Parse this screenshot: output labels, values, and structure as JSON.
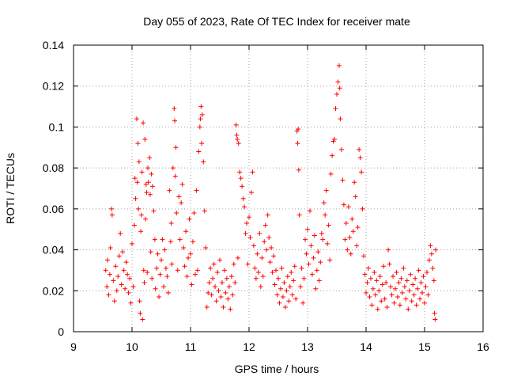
{
  "chart_data": {
    "type": "scatter",
    "title": "Day 055 of 2023, Rate Of TEC Index for receiver mate",
    "xlabel": "GPS time / hours",
    "ylabel": "ROTI / TECUs",
    "xlim": [
      9,
      16
    ],
    "ylim": [
      0,
      0.14
    ],
    "x_ticks": [
      9,
      10,
      11,
      12,
      13,
      14,
      15,
      16
    ],
    "y_ticks": [
      0,
      0.02,
      0.04,
      0.06,
      0.08,
      0.1,
      0.12,
      0.14
    ],
    "x_tick_labels": [
      "9",
      "10",
      "11",
      "12",
      "13",
      "14",
      "15",
      "16"
    ],
    "y_tick_labels": [
      "0",
      "0.02",
      "0.04",
      "0.06",
      "0.08",
      "0.1",
      "0.12",
      "0.14"
    ],
    "grid": true,
    "marker": "+",
    "color": "#ff0000",
    "series": [
      {
        "values": [
          [
            9.55,
            0.03
          ],
          [
            9.57,
            0.022
          ],
          [
            9.58,
            0.035
          ],
          [
            9.6,
            0.018
          ],
          [
            9.62,
            0.028
          ],
          [
            9.63,
            0.041
          ],
          [
            9.65,
            0.06
          ],
          [
            9.66,
            0.057
          ],
          [
            9.68,
            0.025
          ],
          [
            9.7,
            0.015
          ],
          [
            9.72,
            0.032
          ],
          [
            9.74,
            0.02
          ],
          [
            9.76,
            0.027
          ],
          [
            9.78,
            0.037
          ],
          [
            9.8,
            0.048
          ],
          [
            9.82,
            0.023
          ],
          [
            9.84,
            0.039
          ],
          [
            9.86,
            0.03
          ],
          [
            9.88,
            0.021
          ],
          [
            9.9,
            0.034
          ],
          [
            9.92,
            0.028
          ],
          [
            9.94,
            0.019
          ],
          [
            9.96,
            0.026
          ],
          [
            9.98,
            0.014
          ],
          [
            10.0,
            0.043
          ],
          [
            10.02,
            0.022
          ],
          [
            10.04,
            0.052
          ],
          [
            10.05,
            0.075
          ],
          [
            10.06,
            0.065
          ],
          [
            10.08,
            0.104
          ],
          [
            10.09,
            0.073
          ],
          [
            10.1,
            0.092
          ],
          [
            10.11,
            0.06
          ],
          [
            10.12,
            0.083
          ],
          [
            10.13,
            0.015
          ],
          [
            10.14,
            0.009
          ],
          [
            10.15,
            0.049
          ],
          [
            10.16,
            0.057
          ],
          [
            10.17,
            0.078
          ],
          [
            10.18,
            0.006
          ],
          [
            10.19,
            0.102
          ],
          [
            10.2,
            0.03
          ],
          [
            10.21,
            0.024
          ],
          [
            10.22,
            0.094
          ],
          [
            10.23,
            0.055
          ],
          [
            10.24,
            0.072
          ],
          [
            10.25,
            0.068
          ],
          [
            10.26,
            0.029
          ],
          [
            10.27,
            0.08
          ],
          [
            10.28,
            0.073
          ],
          [
            10.3,
            0.085
          ],
          [
            10.31,
            0.067
          ],
          [
            10.32,
            0.039
          ],
          [
            10.33,
            0.077
          ],
          [
            10.34,
            0.026
          ],
          [
            10.35,
            0.071
          ],
          [
            10.37,
            0.059
          ],
          [
            10.39,
            0.045
          ],
          [
            10.4,
            0.021
          ],
          [
            10.42,
            0.031
          ],
          [
            10.44,
            0.038
          ],
          [
            10.46,
            0.017
          ],
          [
            10.48,
            0.028
          ],
          [
            10.5,
            0.035
          ],
          [
            10.52,
            0.045
          ],
          [
            10.54,
            0.022
          ],
          [
            10.56,
            0.04
          ],
          [
            10.58,
            0.031
          ],
          [
            10.6,
            0.027
          ],
          [
            10.62,
            0.019
          ],
          [
            10.64,
            0.069
          ],
          [
            10.66,
            0.044
          ],
          [
            10.67,
            0.053
          ],
          [
            10.68,
            0.033
          ],
          [
            10.7,
            0.08
          ],
          [
            10.72,
            0.109
          ],
          [
            10.73,
            0.103
          ],
          [
            10.74,
            0.076
          ],
          [
            10.75,
            0.09
          ],
          [
            10.76,
            0.058
          ],
          [
            10.78,
            0.03
          ],
          [
            10.8,
            0.066
          ],
          [
            10.82,
            0.045
          ],
          [
            10.84,
            0.063
          ],
          [
            10.86,
            0.072
          ],
          [
            10.88,
            0.041
          ],
          [
            10.9,
            0.032
          ],
          [
            10.92,
            0.049
          ],
          [
            10.94,
            0.027
          ],
          [
            10.96,
            0.036
          ],
          [
            10.98,
            0.055
          ],
          [
            11.0,
            0.038
          ],
          [
            11.02,
            0.023
          ],
          [
            11.04,
            0.044
          ],
          [
            11.06,
            0.058
          ],
          [
            11.08,
            0.028
          ],
          [
            11.1,
            0.069
          ],
          [
            11.12,
            0.03
          ],
          [
            11.14,
            0.088
          ],
          [
            11.16,
            0.1
          ],
          [
            11.17,
            0.104
          ],
          [
            11.18,
            0.11
          ],
          [
            11.19,
            0.092
          ],
          [
            11.2,
            0.106
          ],
          [
            11.22,
            0.083
          ],
          [
            11.24,
            0.059
          ],
          [
            11.26,
            0.041
          ],
          [
            11.28,
            0.012
          ],
          [
            11.3,
            0.019
          ],
          [
            11.32,
            0.024
          ],
          [
            11.34,
            0.031
          ],
          [
            11.36,
            0.018
          ],
          [
            11.38,
            0.026
          ],
          [
            11.4,
            0.033
          ],
          [
            11.42,
            0.022
          ],
          [
            11.44,
            0.015
          ],
          [
            11.46,
            0.029
          ],
          [
            11.48,
            0.02
          ],
          [
            11.5,
            0.035
          ],
          [
            11.52,
            0.017
          ],
          [
            11.54,
            0.024
          ],
          [
            11.56,
            0.012
          ],
          [
            11.58,
            0.03
          ],
          [
            11.6,
            0.019
          ],
          [
            11.62,
            0.026
          ],
          [
            11.64,
            0.016
          ],
          [
            11.66,
            0.022
          ],
          [
            11.68,
            0.011
          ],
          [
            11.7,
            0.027
          ],
          [
            11.72,
            0.018
          ],
          [
            11.74,
            0.033
          ],
          [
            11.76,
            0.024
          ],
          [
            11.78,
            0.101
          ],
          [
            11.79,
            0.096
          ],
          [
            11.8,
            0.094
          ],
          [
            11.81,
            0.036
          ],
          [
            11.82,
            0.092
          ],
          [
            11.84,
            0.078
          ],
          [
            11.86,
            0.075
          ],
          [
            11.88,
            0.071
          ],
          [
            11.9,
            0.065
          ],
          [
            11.92,
            0.061
          ],
          [
            11.94,
            0.048
          ],
          [
            11.96,
            0.053
          ],
          [
            11.98,
            0.033
          ],
          [
            12.0,
            0.056
          ],
          [
            12.02,
            0.046
          ],
          [
            12.04,
            0.068
          ],
          [
            12.06,
            0.078
          ],
          [
            12.08,
            0.042
          ],
          [
            12.1,
            0.031
          ],
          [
            12.12,
            0.026
          ],
          [
            12.14,
            0.038
          ],
          [
            12.16,
            0.029
          ],
          [
            12.18,
            0.048
          ],
          [
            12.2,
            0.022
          ],
          [
            12.22,
            0.036
          ],
          [
            12.24,
            0.027
          ],
          [
            12.26,
            0.044
          ],
          [
            12.28,
            0.052
          ],
          [
            12.3,
            0.04
          ],
          [
            12.32,
            0.057
          ],
          [
            12.34,
            0.046
          ],
          [
            12.36,
            0.034
          ],
          [
            12.38,
            0.041
          ],
          [
            12.4,
            0.029
          ],
          [
            12.42,
            0.037
          ],
          [
            12.44,
            0.023
          ],
          [
            12.46,
            0.03
          ],
          [
            12.48,
            0.018
          ],
          [
            12.5,
            0.026
          ],
          [
            12.52,
            0.014
          ],
          [
            12.54,
            0.021
          ],
          [
            12.56,
            0.031
          ],
          [
            12.58,
            0.017
          ],
          [
            12.6,
            0.024
          ],
          [
            12.62,
            0.012
          ],
          [
            12.64,
            0.02
          ],
          [
            12.66,
            0.027
          ],
          [
            12.68,
            0.015
          ],
          [
            12.7,
            0.022
          ],
          [
            12.72,
            0.029
          ],
          [
            12.74,
            0.018
          ],
          [
            12.76,
            0.025
          ],
          [
            12.78,
            0.032
          ],
          [
            12.8,
            0.016
          ],
          [
            12.82,
            0.098
          ],
          [
            12.83,
            0.092
          ],
          [
            12.84,
            0.099
          ],
          [
            12.85,
            0.079
          ],
          [
            12.86,
            0.057
          ],
          [
            12.88,
            0.022
          ],
          [
            12.9,
            0.031
          ],
          [
            12.92,
            0.014
          ],
          [
            12.94,
            0.026
          ],
          [
            12.96,
            0.045
          ],
          [
            12.98,
            0.038
          ],
          [
            13.0,
            0.05
          ],
          [
            13.02,
            0.033
          ],
          [
            13.04,
            0.059
          ],
          [
            13.06,
            0.042
          ],
          [
            13.08,
            0.028
          ],
          [
            13.1,
            0.036
          ],
          [
            13.12,
            0.047
          ],
          [
            13.14,
            0.021
          ],
          [
            13.16,
            0.03
          ],
          [
            13.18,
            0.039
          ],
          [
            13.2,
            0.025
          ],
          [
            13.22,
            0.034
          ],
          [
            13.24,
            0.048
          ],
          [
            13.26,
            0.045
          ],
          [
            13.28,
            0.063
          ],
          [
            13.3,
            0.057
          ],
          [
            13.32,
            0.069
          ],
          [
            13.34,
            0.043
          ],
          [
            13.36,
            0.052
          ],
          [
            13.38,
            0.035
          ],
          [
            13.4,
            0.077
          ],
          [
            13.42,
            0.086
          ],
          [
            13.44,
            0.093
          ],
          [
            13.46,
            0.094
          ],
          [
            13.48,
            0.109
          ],
          [
            13.5,
            0.116
          ],
          [
            13.52,
            0.122
          ],
          [
            13.54,
            0.13
          ],
          [
            13.55,
            0.119
          ],
          [
            13.56,
            0.104
          ],
          [
            13.58,
            0.089
          ],
          [
            13.6,
            0.074
          ],
          [
            13.62,
            0.062
          ],
          [
            13.64,
            0.045
          ],
          [
            13.66,
            0.053
          ],
          [
            13.68,
            0.04
          ],
          [
            13.7,
            0.061
          ],
          [
            13.72,
            0.046
          ],
          [
            13.74,
            0.038
          ],
          [
            13.76,
            0.055
          ],
          [
            13.78,
            0.049
          ],
          [
            13.8,
            0.073
          ],
          [
            13.82,
            0.066
          ],
          [
            13.84,
            0.042
          ],
          [
            13.86,
            0.051
          ],
          [
            13.88,
            0.089
          ],
          [
            13.9,
            0.085
          ],
          [
            13.92,
            0.078
          ],
          [
            13.94,
            0.06
          ],
          [
            13.96,
            0.037
          ],
          [
            13.98,
            0.028
          ],
          [
            14.0,
            0.019
          ],
          [
            14.02,
            0.024
          ],
          [
            14.04,
            0.031
          ],
          [
            14.06,
            0.017
          ],
          [
            14.08,
            0.026
          ],
          [
            14.1,
            0.013
          ],
          [
            14.12,
            0.021
          ],
          [
            14.14,
            0.029
          ],
          [
            14.16,
            0.018
          ],
          [
            14.18,
            0.025
          ],
          [
            14.2,
            0.011
          ],
          [
            14.22,
            0.02
          ],
          [
            14.24,
            0.027
          ],
          [
            14.26,
            0.015
          ],
          [
            14.28,
            0.023
          ],
          [
            14.3,
            0.032
          ],
          [
            14.32,
            0.016
          ],
          [
            14.34,
            0.024
          ],
          [
            14.36,
            0.012
          ],
          [
            14.38,
            0.04
          ],
          [
            14.4,
            0.033
          ],
          [
            14.42,
            0.022
          ],
          [
            14.44,
            0.018
          ],
          [
            14.46,
            0.027
          ],
          [
            14.48,
            0.014
          ],
          [
            14.5,
            0.021
          ],
          [
            14.52,
            0.029
          ],
          [
            14.54,
            0.017
          ],
          [
            14.56,
            0.024
          ],
          [
            14.58,
            0.013
          ],
          [
            14.6,
            0.026
          ],
          [
            14.62,
            0.019
          ],
          [
            14.64,
            0.031
          ],
          [
            14.66,
            0.022
          ],
          [
            14.68,
            0.016
          ],
          [
            14.7,
            0.025
          ],
          [
            14.72,
            0.011
          ],
          [
            14.74,
            0.02
          ],
          [
            14.76,
            0.028
          ],
          [
            14.78,
            0.015
          ],
          [
            14.8,
            0.023
          ],
          [
            14.82,
            0.018
          ],
          [
            14.84,
            0.026
          ],
          [
            14.86,
            0.013
          ],
          [
            14.88,
            0.021
          ],
          [
            14.9,
            0.03
          ],
          [
            14.92,
            0.016
          ],
          [
            14.94,
            0.024
          ],
          [
            14.96,
            0.019
          ],
          [
            14.98,
            0.027
          ],
          [
            15.0,
            0.014
          ],
          [
            15.02,
            0.022
          ],
          [
            15.04,
            0.029
          ],
          [
            15.06,
            0.018
          ],
          [
            15.08,
            0.035
          ],
          [
            15.1,
            0.042
          ],
          [
            15.12,
            0.038
          ],
          [
            15.14,
            0.031
          ],
          [
            15.16,
            0.025
          ],
          [
            15.17,
            0.009
          ],
          [
            15.18,
            0.006
          ],
          [
            15.19,
            0.04
          ]
        ]
      }
    ]
  }
}
